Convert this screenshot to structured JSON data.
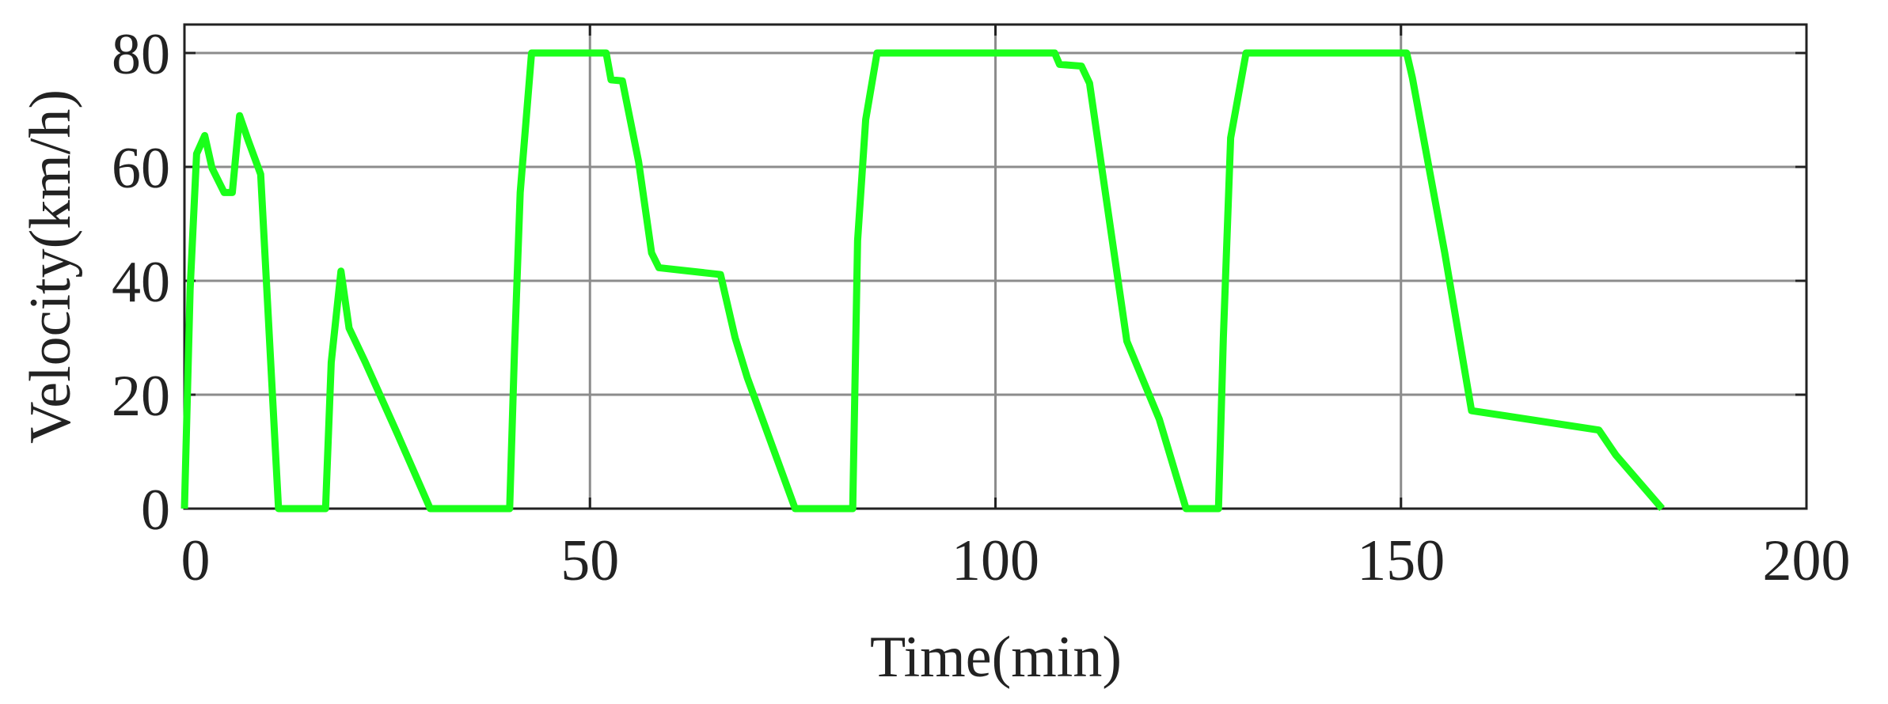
{
  "chart_data": {
    "type": "line",
    "xlabel": "Time(min)",
    "ylabel": "Velocity(km/h)",
    "x": [
      0,
      0.7,
      1.5,
      2.5,
      3.4,
      4.9,
      5.9,
      6.8,
      7.9,
      9.4,
      11.6,
      17.4,
      18.1,
      19.3,
      20.3,
      22.3,
      26.3,
      30.3,
      40.1,
      40.7,
      41.4,
      42.8,
      52,
      52.6,
      54,
      56,
      57.6,
      58.5,
      66.1,
      67.9,
      69.4,
      75.3,
      82.4,
      83,
      84,
      85.4,
      107.3,
      107.9,
      110.6,
      111.6,
      116.2,
      120.2,
      123.5,
      127.5,
      128.1,
      129,
      130.9,
      150.7,
      151.4,
      155.4,
      158.7,
      174.4,
      176.5,
      182.2
    ],
    "series": [
      {
        "color": "#1aff1a",
        "values": [
          0,
          38.5,
          62.3,
          65.5,
          59.8,
          55.5,
          55.5,
          69,
          64.5,
          58.7,
          0,
          0,
          25.7,
          41.7,
          31.7,
          25.7,
          13,
          0,
          0,
          27.9,
          55.5,
          80,
          80,
          75.3,
          75.1,
          60.9,
          44.9,
          42.3,
          41.1,
          30,
          23,
          0,
          0,
          47,
          68.3,
          80,
          80,
          78,
          77.7,
          74.7,
          29.4,
          15.7,
          0,
          0,
          30,
          65.1,
          80,
          80,
          75.7,
          44.9,
          17.2,
          13.8,
          9.4,
          0
        ]
      }
    ],
    "xlim": [
      0,
      200
    ],
    "ylim": [
      0,
      85
    ],
    "xticks": [
      0,
      50,
      100,
      150,
      200
    ],
    "yticks": [
      0,
      20,
      40,
      60,
      80
    ],
    "grid": true
  }
}
